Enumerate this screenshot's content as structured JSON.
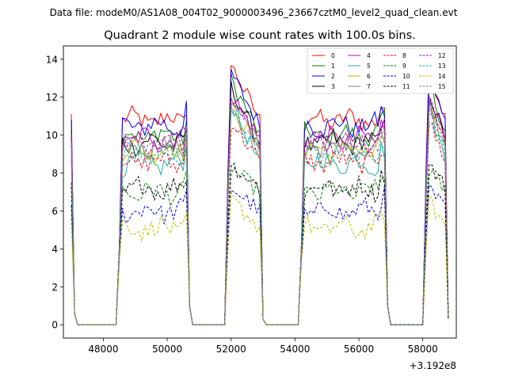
{
  "suptitle": "Data file: modeM0/AS1A08_004T02_9000003496_23667cztM0_level2_quad_clean.evt",
  "chart_data": {
    "type": "line",
    "title": "Quadrant 2 module wise count rates with 100.0s bins.",
    "xlabel": "",
    "ylabel": "",
    "x_offset_label": "+3.192e8",
    "x_offset": 319200000,
    "xlim": [
      46750,
      59050
    ],
    "ylim": [
      -0.7,
      14.7
    ],
    "xticks": [
      48000,
      50000,
      52000,
      54000,
      56000,
      58000
    ],
    "xtick_labels": [
      "48000",
      "50000",
      "52000",
      "54000",
      "56000",
      "58000"
    ],
    "yticks": [
      0,
      2,
      4,
      6,
      8,
      10,
      12,
      14
    ],
    "ytick_labels": [
      "0",
      "2",
      "4",
      "6",
      "8",
      "10",
      "12",
      "14"
    ],
    "grid": false,
    "legend_position": "top-right",
    "legend_columns": 4,
    "segments": [
      {
        "start": 47000,
        "end": 48400,
        "shape": "spike_drop"
      },
      {
        "start": 48500,
        "end": 50700,
        "shape": "plateau"
      },
      {
        "start": 51900,
        "end": 53000,
        "shape": "peak_decay"
      },
      {
        "start": 54200,
        "end": 56900,
        "shape": "plateau"
      },
      {
        "start": 58100,
        "end": 58800,
        "shape": "peak_decay"
      }
    ],
    "series": [
      {
        "name": "0",
        "color": "#ff0000",
        "dash": "solid",
        "level": 10.8,
        "peak": 14.0
      },
      {
        "name": "1",
        "color": "#008000",
        "dash": "solid",
        "level": 10.0,
        "peak": 13.2
      },
      {
        "name": "2",
        "color": "#0000ff",
        "dash": "solid",
        "level": 10.5,
        "peak": 13.6
      },
      {
        "name": "3",
        "color": "#000000",
        "dash": "solid",
        "level": 9.6,
        "peak": 12.8
      },
      {
        "name": "4",
        "color": "#bf00bf",
        "dash": "solid",
        "level": 9.8,
        "peak": 12.4
      },
      {
        "name": "5",
        "color": "#20b2aa",
        "dash": "solid",
        "level": 8.5,
        "peak": 12.0
      },
      {
        "name": "6",
        "color": "#bfbf00",
        "dash": "solid",
        "level": 9.2,
        "peak": 11.8
      },
      {
        "name": "7",
        "color": "#808080",
        "dash": "solid",
        "level": 9.4,
        "peak": 12.2
      },
      {
        "name": "8",
        "color": "#ff0000",
        "dash": "dashed",
        "level": 8.6,
        "peak": 11.0
      },
      {
        "name": "9",
        "color": "#008000",
        "dash": "dashed",
        "level": 7.0,
        "peak": 8.4
      },
      {
        "name": "10",
        "color": "#0000ff",
        "dash": "dashed",
        "level": 6.0,
        "peak": 7.4
      },
      {
        "name": "11",
        "color": "#000000",
        "dash": "dashed",
        "level": 7.2,
        "peak": 8.6
      },
      {
        "name": "12",
        "color": "#bf00bf",
        "dash": "dashed",
        "level": 9.6,
        "peak": 12.6
      },
      {
        "name": "13",
        "color": "#20b2aa",
        "dash": "dashed",
        "level": 9.0,
        "peak": 11.4
      },
      {
        "name": "14",
        "color": "#bfbf00",
        "dash": "dashed",
        "level": 5.1,
        "peak": 6.8
      },
      {
        "name": "15",
        "color": "#808080",
        "dash": "dashed",
        "level": 9.3,
        "peak": 11.6
      }
    ]
  }
}
